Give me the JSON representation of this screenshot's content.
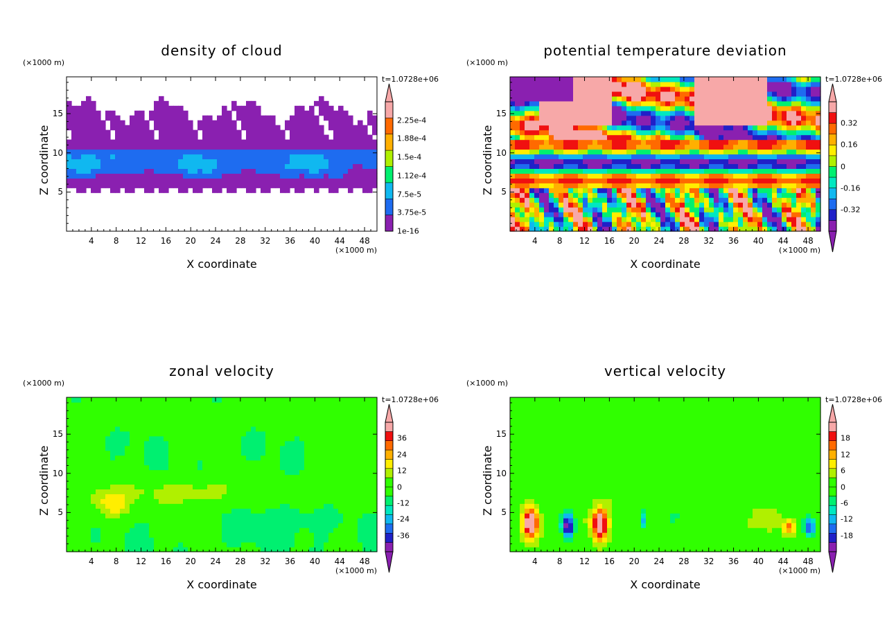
{
  "colors": {
    "frame": "#000000",
    "ramp": [
      "#8a20b0",
      "#2020c8",
      "#1e6cf0",
      "#10b8f0",
      "#00e8c0",
      "#00f070",
      "#30ff00",
      "#b0f000",
      "#ffee00",
      "#ffb000",
      "#ff6a00",
      "#f01010",
      "#f7a8a8"
    ]
  },
  "chart_data": [
    {
      "type": "heatmap",
      "title": "density of cloud",
      "xlabel": "X coordinate",
      "ylabel": "Z coordinate",
      "x_unit": "(×1000 m)",
      "y_unit": "(×1000 m)",
      "time_label": "t=1.0728e+06",
      "xlim": [
        0,
        50
      ],
      "ylim": [
        0,
        19.7
      ],
      "x_ticks": [
        4,
        8,
        12,
        16,
        20,
        24,
        28,
        32,
        36,
        40,
        44,
        48
      ],
      "y_ticks": [
        5,
        10,
        15
      ],
      "colorbar": {
        "labels": [
          "2.25e-4",
          "1.88e-4",
          "1.5e-4",
          "1.12e-4",
          "7.5e-5",
          "3.75e-5",
          "1e-16"
        ],
        "levels": 8,
        "range": [
          0,
          0.00028
        ],
        "triangle_top": true,
        "triangle_bottom": false,
        "blank_below_min": true
      }
    },
    {
      "type": "heatmap",
      "title": "potential temperature deviation",
      "xlabel": "X coordinate",
      "ylabel": "Z coordinate",
      "x_unit": "(×1000 m)",
      "y_unit": "(×1000 m)",
      "time_label": "t=1.0728e+06",
      "xlim": [
        0,
        50
      ],
      "ylim": [
        0,
        19.7
      ],
      "x_ticks": [
        4,
        8,
        12,
        16,
        20,
        24,
        28,
        32,
        36,
        40,
        44,
        48
      ],
      "y_ticks": [
        5,
        10,
        15
      ],
      "colorbar": {
        "labels": [
          "0.32",
          "0.16",
          "0",
          "-0.16",
          "-0.32"
        ],
        "levels": 12,
        "range": [
          -0.45,
          0.45
        ],
        "triangle_top": true,
        "triangle_bottom": true,
        "blank_below_min": false
      }
    },
    {
      "type": "heatmap",
      "title": "zonal velocity",
      "xlabel": "X coordinate",
      "ylabel": "Z coordinate",
      "x_unit": "(×1000 m)",
      "y_unit": "(×1000 m)",
      "time_label": "t=1.0728e+06",
      "xlim": [
        0,
        50
      ],
      "ylim": [
        0,
        19.7
      ],
      "x_ticks": [
        4,
        8,
        12,
        16,
        20,
        24,
        28,
        32,
        36,
        40,
        44,
        48
      ],
      "y_ticks": [
        5,
        10,
        15
      ],
      "colorbar": {
        "labels": [
          "36",
          "24",
          "12",
          "0",
          "-12",
          "-24",
          "-36"
        ],
        "levels": 14,
        "range": [
          -48,
          48
        ],
        "triangle_top": true,
        "triangle_bottom": true,
        "blank_below_min": false
      }
    },
    {
      "type": "heatmap",
      "title": "vertical velocity",
      "xlabel": "X coordinate",
      "ylabel": "Z coordinate",
      "x_unit": "(×1000 m)",
      "y_unit": "(×1000 m)",
      "time_label": "t=1.0728e+06",
      "xlim": [
        0,
        50
      ],
      "ylim": [
        0,
        19.7
      ],
      "x_ticks": [
        4,
        8,
        12,
        16,
        20,
        24,
        28,
        32,
        36,
        40,
        44,
        48
      ],
      "y_ticks": [
        5,
        10,
        15
      ],
      "colorbar": {
        "labels": [
          "18",
          "12",
          "6",
          "0",
          "-6",
          "-12",
          "-18"
        ],
        "levels": 14,
        "range": [
          -24,
          24
        ],
        "triangle_top": true,
        "triangle_bottom": true,
        "blank_below_min": false
      }
    }
  ]
}
